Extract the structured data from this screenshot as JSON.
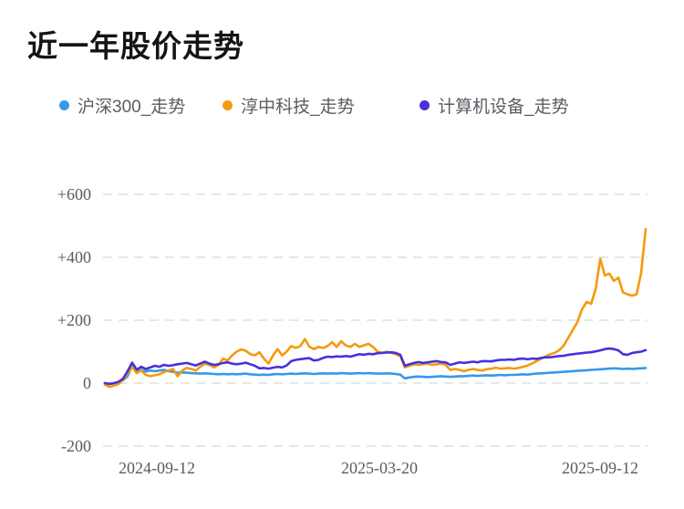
{
  "title": "近一年股价走势",
  "chart_data": {
    "type": "line",
    "title": "近一年股价走势",
    "legend_position": "top",
    "grid": true,
    "x_axis": {
      "tick_labels": [
        "2024-09-12",
        "2025-03-20",
        "2025-09-12"
      ]
    },
    "y_axis": {
      "tick_labels": [
        "+600",
        "+400",
        "+200",
        "0",
        "-200"
      ],
      "tick_values": [
        600,
        400,
        200,
        0,
        -200
      ],
      "range": [
        -200,
        600
      ]
    },
    "legend": [
      "沪深300_走势",
      "淳中科技_走势",
      "计算机设备_走势"
    ],
    "series": [
      {
        "key": "hs300",
        "name": "沪深300_走势",
        "color": "#3699EA",
        "values": [
          0,
          -2,
          0,
          3,
          9,
          22,
          55,
          38,
          42,
          37,
          40,
          38,
          40,
          42,
          38,
          36,
          33,
          34,
          33,
          32,
          31,
          30,
          31,
          30,
          29,
          28,
          29,
          28,
          29,
          28,
          29,
          30,
          28,
          27,
          26,
          27,
          26,
          28,
          29,
          28,
          29,
          30,
          29,
          30,
          31,
          30,
          29,
          30,
          31,
          30,
          31,
          30,
          32,
          31,
          30,
          31,
          32,
          31,
          32,
          31,
          30,
          30,
          31,
          30,
          29,
          27,
          15,
          18,
          20,
          21,
          20,
          19,
          20,
          21,
          22,
          21,
          20,
          21,
          22,
          22,
          23,
          24,
          23,
          24,
          25,
          24,
          25,
          26,
          25,
          26,
          26,
          27,
          28,
          27,
          29,
          30,
          31,
          32,
          33,
          34,
          35,
          36,
          37,
          38,
          39,
          40,
          41,
          42,
          43,
          44,
          45,
          46,
          47,
          46,
          45,
          46,
          45,
          46,
          47,
          48
        ]
      },
      {
        "key": "chunzhong-tech",
        "name": "淳中科技_走势",
        "color": "#F5990F",
        "values": [
          -5,
          -12,
          -8,
          -3,
          10,
          30,
          52,
          32,
          40,
          26,
          22,
          25,
          28,
          35,
          40,
          45,
          22,
          40,
          48,
          45,
          40,
          52,
          62,
          58,
          50,
          58,
          78,
          72,
          88,
          100,
          107,
          103,
          92,
          88,
          98,
          78,
          62,
          88,
          108,
          88,
          100,
          118,
          112,
          118,
          140,
          116,
          108,
          115,
          112,
          118,
          130,
          115,
          133,
          120,
          115,
          125,
          115,
          120,
          125,
          115,
          100,
          96,
          100,
          96,
          92,
          86,
          50,
          55,
          60,
          58,
          60,
          62,
          58,
          60,
          62,
          58,
          42,
          45,
          42,
          38,
          42,
          45,
          42,
          40,
          44,
          46,
          49,
          46,
          47,
          48,
          46,
          48,
          52,
          56,
          62,
          70,
          78,
          85,
          92,
          96,
          105,
          120,
          145,
          170,
          195,
          235,
          258,
          252,
          300,
          395,
          342,
          348,
          325,
          335,
          288,
          282,
          278,
          282,
          350,
          490
        ]
      },
      {
        "key": "computer-equipment",
        "name": "计算机设备_走势",
        "color": "#4631DC",
        "values": [
          0,
          -3,
          0,
          4,
          14,
          38,
          65,
          43,
          52,
          45,
          50,
          55,
          52,
          58,
          55,
          57,
          60,
          62,
          64,
          60,
          56,
          62,
          68,
          62,
          58,
          60,
          64,
          66,
          62,
          60,
          62,
          65,
          60,
          55,
          47,
          48,
          46,
          49,
          52,
          50,
          56,
          70,
          74,
          76,
          78,
          79,
          72,
          74,
          80,
          84,
          83,
          85,
          84,
          86,
          84,
          88,
          92,
          90,
          93,
          92,
          95,
          96,
          97,
          98,
          96,
          90,
          55,
          60,
          64,
          67,
          64,
          66,
          68,
          70,
          67,
          66,
          58,
          62,
          66,
          64,
          66,
          68,
          66,
          70,
          70,
          69,
          72,
          74,
          74,
          75,
          74,
          77,
          78,
          76,
          78,
          77,
          80,
          82,
          82,
          84,
          86,
          87,
          90,
          92,
          94,
          95,
          97,
          98,
          101,
          104,
          108,
          110,
          108,
          104,
          92,
          90,
          96,
          98,
          100,
          105
        ]
      }
    ]
  }
}
